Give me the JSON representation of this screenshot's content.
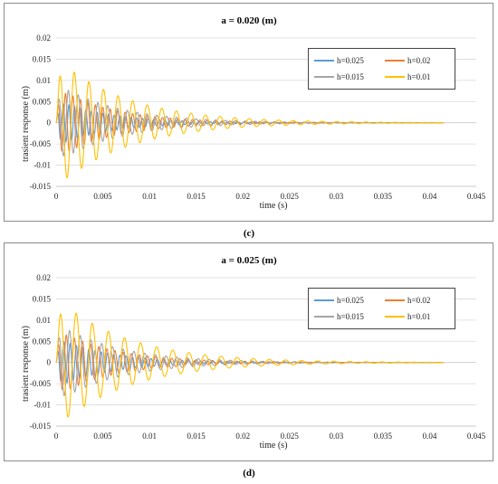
{
  "colors": {
    "h0025": "#5b9bd5",
    "h002": "#ed7d31",
    "h0015": "#a5a5a5",
    "h001": "#ffc000",
    "grid": "#d9d9d9",
    "axis_text": "#222222"
  },
  "chart_data": [
    {
      "type": "line",
      "panel": "c",
      "caption": "(c)",
      "title": "a = 0.020 (m)",
      "xlabel": "time (s)",
      "ylabel": "trasient response (m)",
      "xlim": [
        0,
        0.045
      ],
      "ylim": [
        -0.015,
        0.02
      ],
      "xticks": [
        "0",
        "0.005",
        "0.01",
        "0.015",
        "0.02",
        "0.025",
        "0.03",
        "0.035",
        "0.04",
        "0.045"
      ],
      "yticks": [
        "0.02",
        "0.015",
        "0.01",
        "0.005",
        "0",
        "-0.005",
        "-0.01",
        "-0.015"
      ],
      "grid": "horizontal",
      "legend_position": "top-right",
      "series": [
        {
          "name": "h=0.025",
          "color_key": "h0025",
          "amplitude": 0.0055,
          "decay_s": 0.0055,
          "frequency_hz": 1650,
          "x_end": 0.0415
        },
        {
          "name": "h=0.02",
          "color_key": "h002",
          "amplitude": 0.0085,
          "decay_s": 0.006,
          "frequency_hz": 1250,
          "x_end": 0.0415
        },
        {
          "name": "h=0.015",
          "color_key": "h0015",
          "amplitude": 0.0095,
          "decay_s": 0.0065,
          "frequency_hz": 950,
          "x_end": 0.0415
        },
        {
          "name": "h=0.01",
          "color_key": "h001",
          "amplitude": 0.0155,
          "decay_s": 0.0075,
          "frequency_hz": 640,
          "x_end": 0.0415
        }
      ]
    },
    {
      "type": "line",
      "panel": "d",
      "caption": "(d)",
      "title": "a = 0.025 (m)",
      "xlabel": "time (s)",
      "ylabel": "trasient response (m)",
      "xlim": [
        0,
        0.045
      ],
      "ylim": [
        -0.015,
        0.02
      ],
      "xticks": [
        "0",
        "0.005",
        "0.01",
        "0.015",
        "0.02",
        "0.025",
        "0.03",
        "0.035",
        "0.04",
        "0.045"
      ],
      "yticks": [
        "0.02",
        "0.015",
        "0.01",
        "0.005",
        "0",
        "-0.005",
        "-0.01",
        "-0.015"
      ],
      "grid": "horizontal",
      "legend_position": "top-right",
      "series": [
        {
          "name": "h=0.025",
          "color_key": "h0025",
          "amplitude": 0.006,
          "decay_s": 0.0055,
          "frequency_hz": 1500,
          "x_end": 0.0415
        },
        {
          "name": "h=0.02",
          "color_key": "h002",
          "amplitude": 0.008,
          "decay_s": 0.006,
          "frequency_hz": 1150,
          "x_end": 0.0415
        },
        {
          "name": "h=0.015",
          "color_key": "h0015",
          "amplitude": 0.0095,
          "decay_s": 0.0065,
          "frequency_hz": 870,
          "x_end": 0.0415
        },
        {
          "name": "h=0.01",
          "color_key": "h001",
          "amplitude": 0.0155,
          "decay_s": 0.0075,
          "frequency_hz": 580,
          "x_end": 0.0415
        }
      ]
    }
  ]
}
